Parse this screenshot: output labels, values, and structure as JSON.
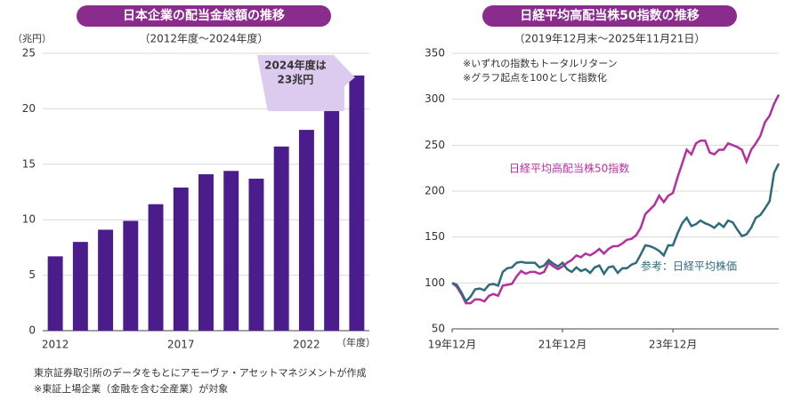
{
  "chart_data": [
    {
      "type": "bar",
      "title": "日本企業の配当金総額の推移",
      "subtitle": "（2012年度～2024年度）",
      "y_label": "（兆円）",
      "x_label": "（年度）",
      "categories": [
        "2012",
        null,
        null,
        null,
        null,
        "2017",
        null,
        null,
        null,
        null,
        "2022",
        null,
        null
      ],
      "values": [
        6.7,
        8.0,
        9.1,
        9.9,
        11.4,
        12.9,
        14.1,
        14.4,
        13.7,
        16.6,
        18.1,
        20.0,
        23.0
      ],
      "color": "#4b1d8c",
      "ylim": [
        0,
        25
      ],
      "yticks": [
        0,
        5,
        10,
        15,
        20,
        25
      ],
      "grid": true,
      "annotation": [
        "2024年度は",
        "23兆円"
      ],
      "notes": [
        "東京証券取引所のデータをもとにアモーヴァ・アセットマネジメントが作成",
        "※東証上場企業（金融を含む全産業）が対象"
      ]
    },
    {
      "type": "line",
      "title": "日経平均高配当株50指数の推移",
      "subtitle": "（2019年12月末～2025年11月21日）",
      "notes": [
        "※いずれの指数もトータルリターン",
        "※グラフ起点を100として指数化"
      ],
      "x": [
        "2019-12",
        "2020-01",
        "2020-02",
        "2020-03",
        "2020-04",
        "2020-05",
        "2020-06",
        "2020-07",
        "2020-08",
        "2020-09",
        "2020-10",
        "2020-11",
        "2020-12",
        "2021-01",
        "2021-02",
        "2021-03",
        "2021-04",
        "2021-05",
        "2021-06",
        "2021-07",
        "2021-08",
        "2021-09",
        "2021-10",
        "2021-11",
        "2021-12",
        "2022-01",
        "2022-02",
        "2022-03",
        "2022-04",
        "2022-05",
        "2022-06",
        "2022-07",
        "2022-08",
        "2022-09",
        "2022-10",
        "2022-11",
        "2022-12",
        "2023-01",
        "2023-02",
        "2023-03",
        "2023-04",
        "2023-05",
        "2023-06",
        "2023-07",
        "2023-08",
        "2023-09",
        "2023-10",
        "2023-11",
        "2023-12",
        "2024-01",
        "2024-02",
        "2024-03",
        "2024-04",
        "2024-05",
        "2024-06",
        "2024-07",
        "2024-08",
        "2024-09",
        "2024-10",
        "2024-11",
        "2024-12",
        "2025-01",
        "2025-02",
        "2025-03",
        "2025-04",
        "2025-05",
        "2025-06",
        "2025-07",
        "2025-08",
        "2025-09",
        "2025-10",
        "2025-11"
      ],
      "xticks": [
        {
          "value": "2019-12",
          "label": "19年12月"
        },
        {
          "value": "2021-12",
          "label": "21年12月"
        },
        {
          "value": "2023-12",
          "label": "23年12月"
        }
      ],
      "series": [
        {
          "name": "日経平均高配当株50指数",
          "color": "#b5309e",
          "values": [
            100,
            96,
            88,
            78,
            78,
            82,
            82,
            80,
            86,
            88,
            86,
            97,
            98,
            99,
            107,
            113,
            110,
            112,
            112,
            110,
            112,
            122,
            118,
            115,
            118,
            122,
            125,
            130,
            128,
            132,
            130,
            133,
            137,
            132,
            137,
            140,
            140,
            143,
            147,
            148,
            152,
            160,
            175,
            180,
            185,
            195,
            188,
            195,
            198,
            215,
            230,
            245,
            240,
            252,
            255,
            255,
            242,
            240,
            245,
            245,
            252,
            250,
            248,
            245,
            232,
            245,
            252,
            260,
            275,
            282,
            295,
            305
          ]
        },
        {
          "name": "参考：日経平均株価",
          "color": "#2e6b7d",
          "values": [
            100,
            98,
            90,
            80,
            85,
            93,
            94,
            92,
            98,
            99,
            97,
            112,
            116,
            117,
            122,
            123,
            122,
            122,
            122,
            117,
            119,
            125,
            121,
            118,
            122,
            115,
            112,
            117,
            113,
            115,
            111,
            117,
            119,
            110,
            117,
            118,
            111,
            116,
            116,
            120,
            122,
            131,
            141,
            140,
            138,
            135,
            130,
            141,
            141,
            154,
            165,
            171,
            162,
            164,
            168,
            165,
            163,
            160,
            165,
            161,
            168,
            166,
            158,
            151,
            153,
            160,
            171,
            174,
            181,
            189,
            220,
            230
          ]
        }
      ],
      "ylim": [
        50,
        350
      ],
      "yticks": [
        50,
        100,
        150,
        200,
        250,
        300,
        350
      ],
      "grid": true
    }
  ]
}
